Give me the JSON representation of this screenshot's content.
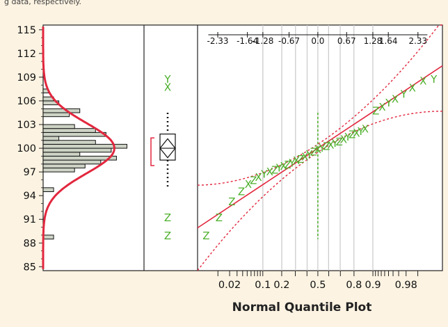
{
  "header_fragment": "g data, respectively.",
  "chart_data": {
    "type": "distribution",
    "ylim": [
      84.5,
      115.6
    ],
    "y_ticks": [
      85,
      88,
      91,
      94,
      97,
      100,
      103,
      106,
      109,
      112,
      115
    ],
    "histogram": {
      "type": "bar",
      "bin_width": 0.5,
      "bins": [
        {
          "y": 88.75,
          "count": 2
        },
        {
          "y": 94.75,
          "count": 2
        },
        {
          "y": 97.25,
          "count": 6
        },
        {
          "y": 97.75,
          "count": 8
        },
        {
          "y": 98.25,
          "count": 11
        },
        {
          "y": 98.75,
          "count": 14
        },
        {
          "y": 99.25,
          "count": 7
        },
        {
          "y": 99.75,
          "count": 13
        },
        {
          "y": 100.25,
          "count": 16
        },
        {
          "y": 100.75,
          "count": 10
        },
        {
          "y": 101.25,
          "count": 3
        },
        {
          "y": 101.75,
          "count": 12
        },
        {
          "y": 102.25,
          "count": 10
        },
        {
          "y": 102.75,
          "count": 6
        },
        {
          "y": 104.25,
          "count": 5
        },
        {
          "y": 104.75,
          "count": 7
        },
        {
          "y": 105.75,
          "count": 3
        },
        {
          "y": 106.25,
          "count": 2
        },
        {
          "y": 107.25,
          "count": 1
        }
      ],
      "count_max": 17,
      "normal_fit": {
        "mean": 100.0,
        "sd": 3.2,
        "peak_count": 13.6,
        "color": "#e2273e"
      }
    },
    "boxplot": {
      "type": "box",
      "whisker_low": 95.0,
      "q1": 98.5,
      "median": 100.0,
      "q3": 101.8,
      "whisker_high": 104.5,
      "mean": 100.0,
      "mean_ci": [
        98.8,
        101.2
      ],
      "shortest_half": [
        97.8,
        101.3
      ],
      "outliers": [
        {
          "y": 108.8,
          "marker": "Y"
        },
        {
          "y": 107.8,
          "marker": "X"
        },
        {
          "y": 91.3,
          "marker": "Z"
        },
        {
          "y": 89.0,
          "marker": "Z"
        }
      ]
    },
    "quantile_plot": {
      "type": "scatter",
      "xlabel": "Normal Quantile Plot",
      "bottom_ticks": [
        0.02,
        0.1,
        0.2,
        0.5,
        0.8,
        0.9,
        0.98
      ],
      "bottom_tick_labels": [
        "0.02",
        "0.1",
        "0.2",
        "0.5",
        "0.8",
        "0.9",
        "0.98"
      ],
      "top_ticks": [
        "-2.33",
        "-1.64",
        "-1.28",
        "-0.67",
        "0.0",
        "0.67",
        "1.28",
        "1.64",
        "2.33"
      ],
      "gridlines_at_z": [
        -1.28,
        -0.84,
        -0.52,
        -0.25,
        0.0,
        0.25,
        0.52,
        0.84,
        1.28
      ],
      "fit_line": {
        "mean": 100.0,
        "sd": 3.6,
        "color": "#e2273e"
      },
      "confidence_band": {
        "halfwidth_at_center": 0.5,
        "growth": 1.25
      },
      "marker_color": "#4caf2a",
      "points": [
        {
          "z": -2.6,
          "y": 89.0,
          "marker": "Z"
        },
        {
          "z": -2.3,
          "y": 91.3,
          "marker": "Z"
        },
        {
          "z": -2.0,
          "y": 93.3,
          "marker": "Z"
        },
        {
          "z": -1.78,
          "y": 94.6,
          "marker": "Z"
        },
        {
          "z": -1.62,
          "y": 95.5,
          "marker": "X"
        },
        {
          "z": -1.5,
          "y": 96.0,
          "marker": "Z"
        },
        {
          "z": -1.38,
          "y": 96.4,
          "marker": "X"
        },
        {
          "z": -1.25,
          "y": 96.8,
          "marker": "Y"
        },
        {
          "z": -1.12,
          "y": 97.1,
          "marker": "X"
        },
        {
          "z": -1.0,
          "y": 97.3,
          "marker": "Z"
        },
        {
          "z": -0.9,
          "y": 97.6,
          "marker": "Y"
        },
        {
          "z": -0.8,
          "y": 97.8,
          "marker": "X"
        },
        {
          "z": -0.7,
          "y": 98.0,
          "marker": "Z"
        },
        {
          "z": -0.6,
          "y": 98.2,
          "marker": "Y"
        },
        {
          "z": -0.5,
          "y": 98.5,
          "marker": "X"
        },
        {
          "z": -0.4,
          "y": 98.7,
          "marker": "Z"
        },
        {
          "z": -0.3,
          "y": 99.0,
          "marker": "X"
        },
        {
          "z": -0.2,
          "y": 99.3,
          "marker": "Y"
        },
        {
          "z": -0.1,
          "y": 99.6,
          "marker": "Z"
        },
        {
          "z": 0.0,
          "y": 99.9,
          "marker": "X"
        },
        {
          "z": 0.1,
          "y": 100.1,
          "marker": "Y"
        },
        {
          "z": 0.2,
          "y": 100.3,
          "marker": "Z"
        },
        {
          "z": 0.3,
          "y": 100.5,
          "marker": "X"
        },
        {
          "z": 0.4,
          "y": 100.7,
          "marker": "Y"
        },
        {
          "z": 0.5,
          "y": 100.9,
          "marker": "Z"
        },
        {
          "z": 0.6,
          "y": 101.2,
          "marker": "X"
        },
        {
          "z": 0.7,
          "y": 101.5,
          "marker": "Y"
        },
        {
          "z": 0.8,
          "y": 101.8,
          "marker": "Z"
        },
        {
          "z": 0.9,
          "y": 102.0,
          "marker": "X"
        },
        {
          "z": 1.0,
          "y": 102.2,
          "marker": "Y"
        },
        {
          "z": 1.1,
          "y": 102.5,
          "marker": "X"
        },
        {
          "z": 1.35,
          "y": 104.8,
          "marker": "Z"
        },
        {
          "z": 1.5,
          "y": 105.3,
          "marker": "X"
        },
        {
          "z": 1.65,
          "y": 105.8,
          "marker": "Y"
        },
        {
          "z": 1.8,
          "y": 106.3,
          "marker": "X"
        },
        {
          "z": 2.0,
          "y": 106.9,
          "marker": "Y"
        },
        {
          "z": 2.2,
          "y": 107.7,
          "marker": "X"
        },
        {
          "z": 2.45,
          "y": 108.6,
          "marker": "X"
        },
        {
          "z": 2.7,
          "y": 108.8,
          "marker": "Y"
        }
      ]
    }
  }
}
